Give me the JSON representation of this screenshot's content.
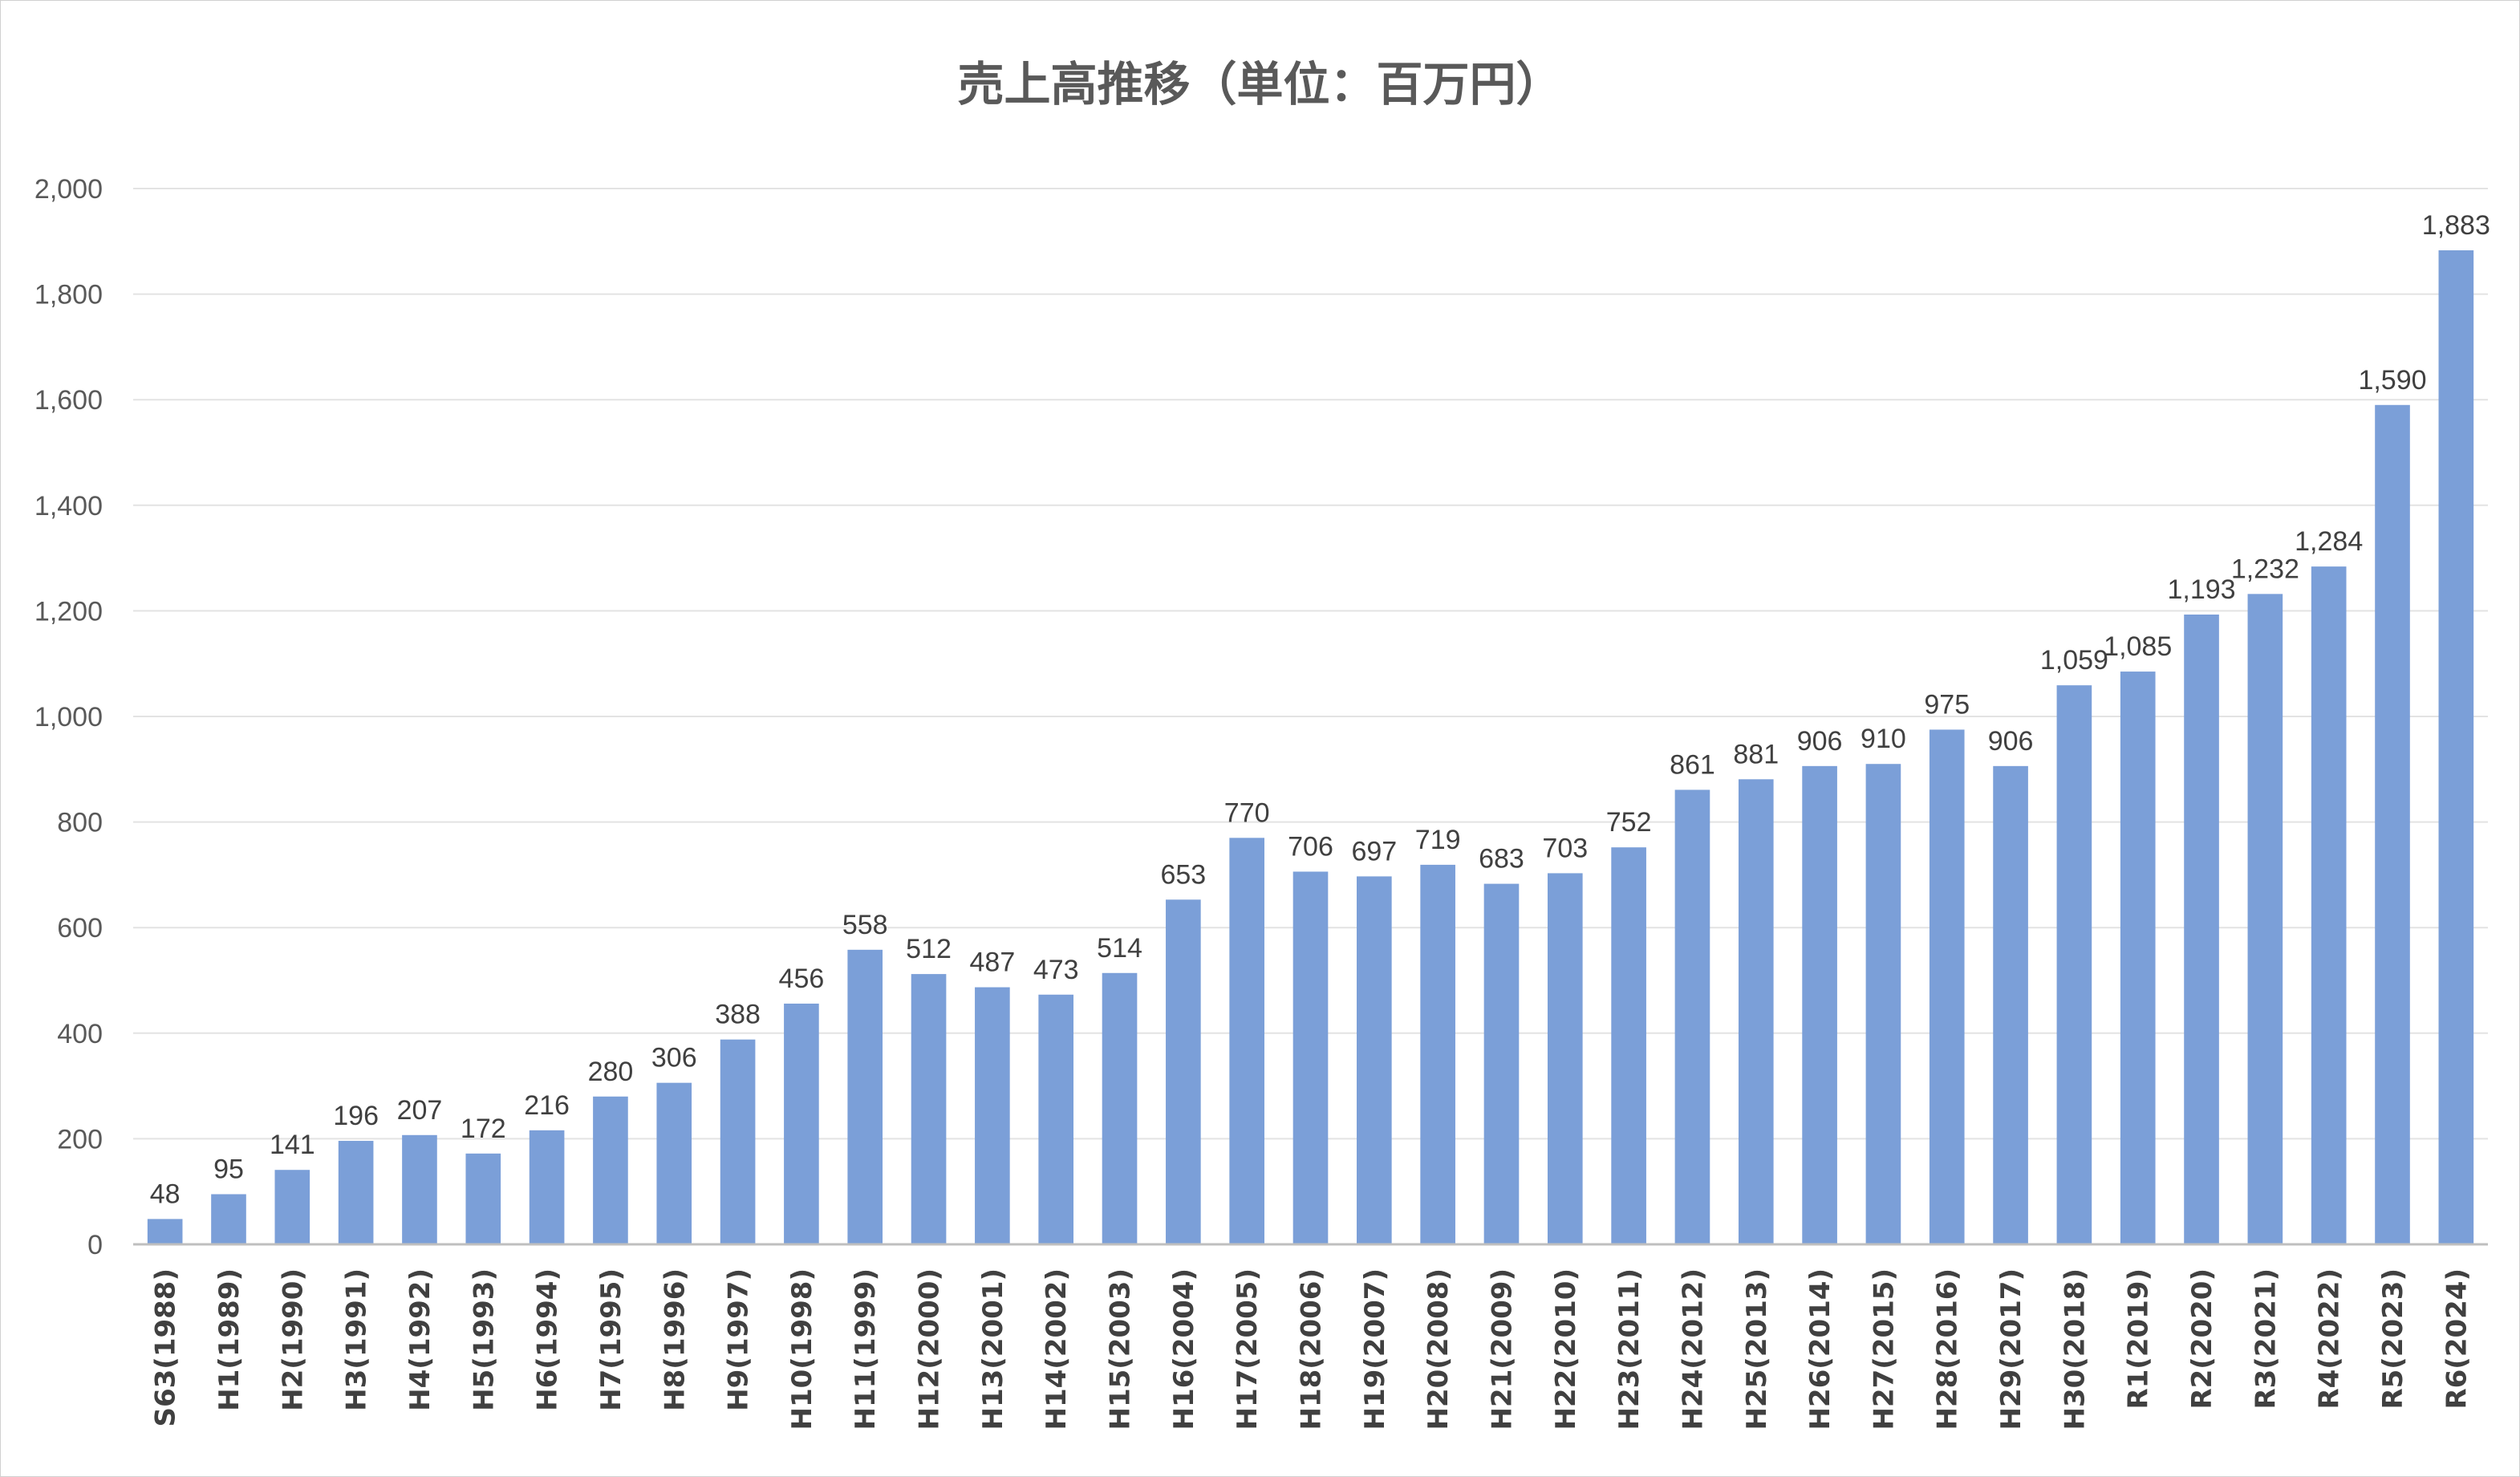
{
  "chart_data": {
    "type": "bar",
    "title": "売上高推移（単位：百万円）",
    "categories": [
      "S63(1988)",
      "H1(1989)",
      "H2(1990)",
      "H3(1991)",
      "H4(1992)",
      "H5(1993)",
      "H6(1994)",
      "H7(1995)",
      "H8(1996)",
      "H9(1997)",
      "H10(1998)",
      "H11(1999)",
      "H12(2000)",
      "H13(2001)",
      "H14(2002)",
      "H15(2003)",
      "H16(2004)",
      "H17(2005)",
      "H18(2006)",
      "H19(2007)",
      "H20(2008)",
      "H21(2009)",
      "H22(2010)",
      "H23(2011)",
      "H24(2012)",
      "H25(2013)",
      "H26(2014)",
      "H27(2015)",
      "H28(2016)",
      "H29(2017)",
      "H30(2018)",
      "R1(2019)",
      "R2(2020)",
      "R3(2021)",
      "R4(2022)",
      "R5(2023)",
      "R6(2024)"
    ],
    "values": [
      48,
      95,
      141,
      196,
      207,
      172,
      216,
      280,
      306,
      388,
      456,
      558,
      512,
      487,
      473,
      514,
      653,
      770,
      706,
      697,
      719,
      683,
      703,
      752,
      861,
      881,
      906,
      910,
      975,
      906,
      1059,
      1085,
      1193,
      1232,
      1284,
      1590,
      1883
    ],
    "data_labels": [
      "48",
      "95",
      "141",
      "196",
      "207",
      "172",
      "216",
      "280",
      "306",
      "388",
      "456",
      "558",
      "512",
      "487",
      "473",
      "514",
      "653",
      "770",
      "706",
      "697",
      "719",
      "683",
      "703",
      "752",
      "861",
      "881",
      "906",
      "910",
      "975",
      "906",
      "1,059",
      "1,085",
      "1,193",
      "1,232",
      "1,284",
      "1,590",
      "1,883"
    ],
    "ylim": [
      0,
      2000
    ],
    "yticks": [
      0,
      200,
      400,
      600,
      800,
      1000,
      1200,
      1400,
      1600,
      1800,
      2000
    ],
    "ytick_labels": [
      "0",
      "200",
      "400",
      "600",
      "800",
      "1,000",
      "1,200",
      "1,400",
      "1,600",
      "1,800",
      "2,000"
    ],
    "xlabel": "",
    "ylabel": "",
    "grid": true,
    "legend": "none",
    "bar_color": "#7b9fd8"
  }
}
